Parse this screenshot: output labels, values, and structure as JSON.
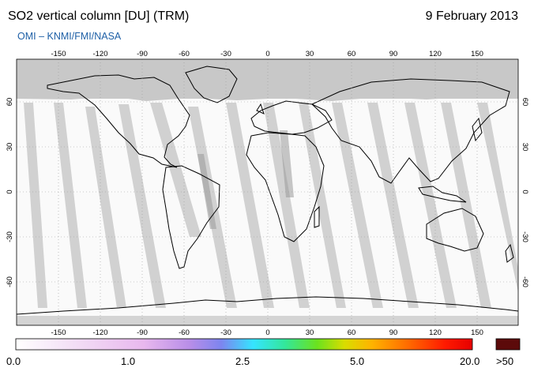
{
  "header": {
    "title": "SO2 vertical column [DU] (TRM)",
    "date": "9 February 2013",
    "subtitle": "OMI  –  KNMI/FMI/NASA"
  },
  "map": {
    "projection": "equirectangular",
    "lon_ticks": [
      "-150",
      "-120",
      "-90",
      "-60",
      "-30",
      "0",
      "30",
      "60",
      "90",
      "120",
      "150"
    ],
    "lat_ticks": [
      "60",
      "30",
      "0",
      "-30",
      "-60"
    ],
    "colors": {
      "no_data": "#c8c8c8",
      "swath_gap": "#cfcfcf",
      "coast": "#000000",
      "grid": "#9a9a9a"
    }
  },
  "colorbar": {
    "labels": [
      "0.0",
      "1.0",
      "2.5",
      "5.0",
      "20.0"
    ],
    "overflow_label": ">50",
    "overflow_color": "#5c0a0a",
    "stops": [
      "#ffffff",
      "#f3e0f6",
      "#e8b8ee",
      "#b98ee8",
      "#7d85ef",
      "#35e4ff",
      "#33e79a",
      "#6be21e",
      "#d9dd00",
      "#ffb300",
      "#ff6a00",
      "#ff1a00",
      "#e60000"
    ]
  }
}
